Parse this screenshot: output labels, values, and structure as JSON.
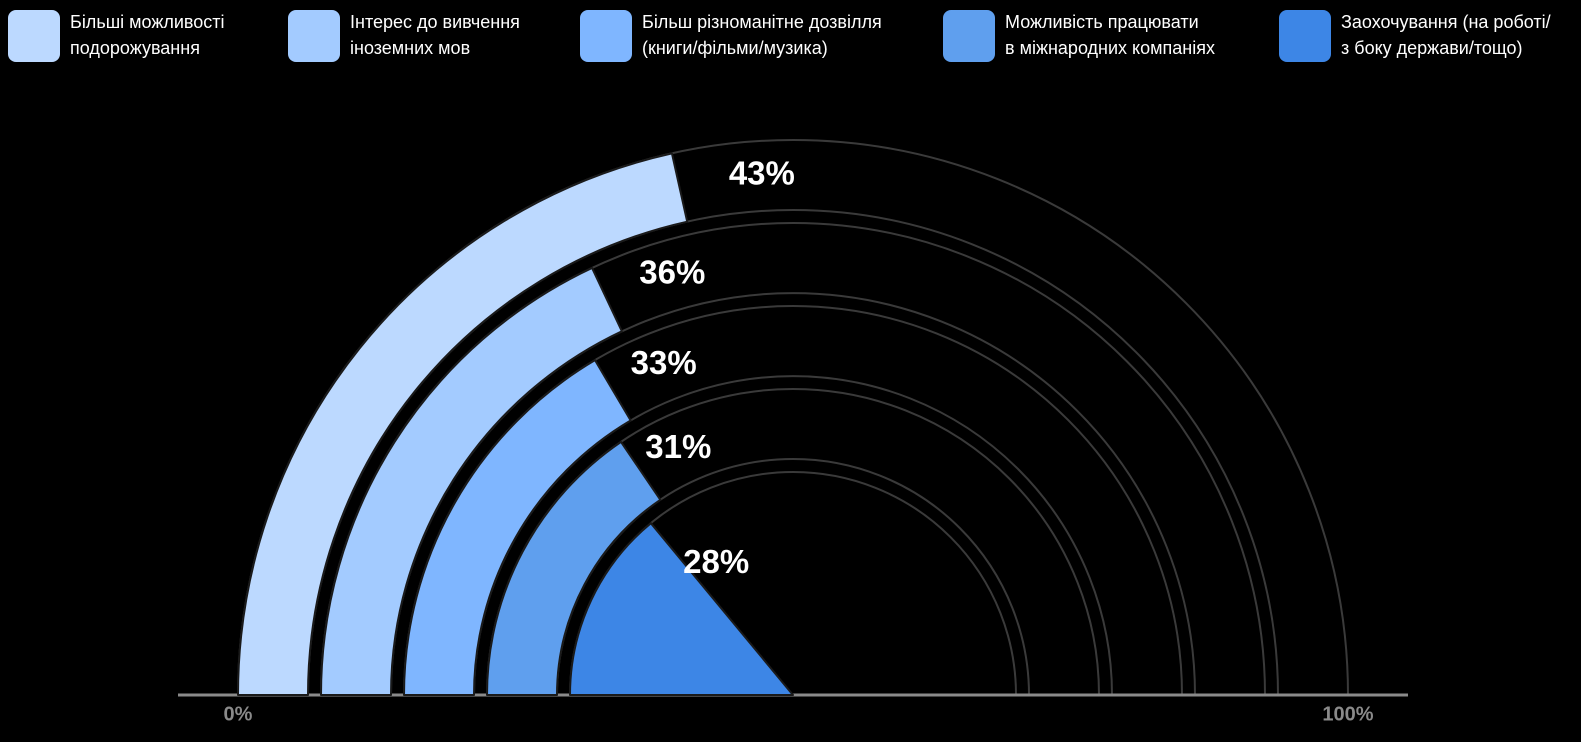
{
  "chart_data": {
    "type": "radial_bar",
    "categories": [
      "Більші можливості\nподорожування",
      "Інтерес до вивчення\nіноземних мов",
      "Більш різноманітне дозвілля\n(книги/фільми/музика)",
      "Можливість працювати\nв міжнародних компаніях",
      "Заохочування (на роботі/\nз боку держави/тощо)"
    ],
    "values": [
      43,
      36,
      33,
      31,
      28
    ],
    "value_labels": [
      "43%",
      "36%",
      "33%",
      "31%",
      "28%"
    ],
    "colors": [
      "#bcd9ff",
      "#a3cbff",
      "#7fb6ff",
      "#5f9fee",
      "#3d86e6"
    ],
    "xlim": [
      0,
      100
    ],
    "xticks": [
      {
        "value": 0,
        "label": "0%"
      },
      {
        "value": 100,
        "label": "100%"
      }
    ]
  }
}
